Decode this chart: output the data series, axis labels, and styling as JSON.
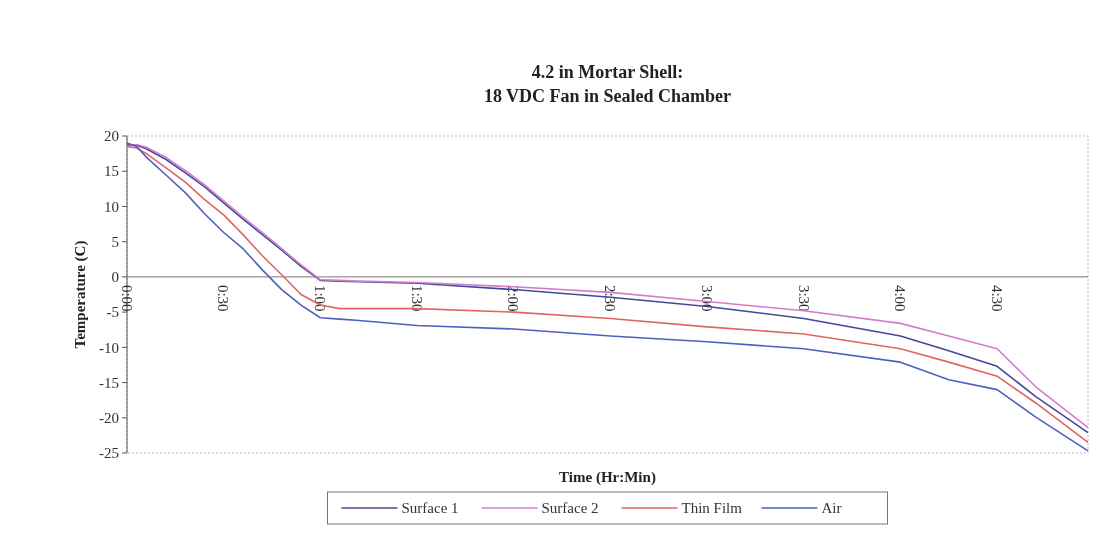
{
  "chart_data": {
    "type": "line",
    "title": "4.2 in Mortar Shell:\n18 VDC Fan in Sealed Chamber",
    "xlabel": "Time (Hr:Min)",
    "ylabel": "Temperature (C)",
    "x": [
      0,
      0.05,
      0.1,
      0.2,
      0.3,
      0.4,
      0.5,
      0.6,
      0.7,
      0.8,
      0.9,
      1.0,
      1.1,
      1.2,
      1.5,
      2.0,
      2.5,
      3.0,
      3.5,
      4.0,
      4.25,
      4.5,
      4.7,
      4.97
    ],
    "series": [
      {
        "name": "Surface 1",
        "color": "#3f4a9a",
        "values": [
          18.7,
          18.7,
          18.2,
          16.7,
          14.8,
          12.8,
          10.5,
          8.2,
          6,
          3.8,
          1.5,
          -0.5,
          -0.6,
          -0.7,
          -0.9,
          -1.8,
          -2.9,
          -4.2,
          -5.9,
          -8.4,
          -10.5,
          -12.7,
          -17,
          -22.1
        ]
      },
      {
        "name": "Surface 2",
        "color": "#d47ccc",
        "values": [
          18.5,
          18.8,
          18.4,
          17,
          15.1,
          13.1,
          10.8,
          8.5,
          6.3,
          4,
          1.7,
          -0.4,
          -0.5,
          -0.6,
          -0.8,
          -1.4,
          -2.2,
          -3.5,
          -4.8,
          -6.6,
          -8.4,
          -10.2,
          -15.6,
          -21.4
        ]
      },
      {
        "name": "Thin Film",
        "color": "#e06464",
        "values": [
          18.5,
          18.3,
          17.5,
          15.5,
          13.5,
          11,
          8.8,
          6,
          3,
          0.3,
          -2.5,
          -4,
          -4.5,
          -4.5,
          -4.5,
          -5,
          -5.9,
          -7.1,
          -8.1,
          -10.2,
          -12.1,
          -14.1,
          -17.9,
          -23.5
        ]
      },
      {
        "name": "Air",
        "color": "#4f5fc0",
        "values": [
          19,
          18.5,
          17,
          14.5,
          12,
          9,
          6.3,
          4,
          1,
          -1.8,
          -4,
          -5.8,
          -6,
          -6.2,
          -6.9,
          -7.4,
          -8.4,
          -9.2,
          -10.2,
          -12.1,
          -14.6,
          -16,
          -19.9,
          -24.7
        ]
      }
    ],
    "xlim": [
      0,
      4.97
    ],
    "xticks": [
      {
        "value": 0,
        "label": "0:00"
      },
      {
        "value": 0.5,
        "label": "0:30"
      },
      {
        "value": 1,
        "label": "1:00"
      },
      {
        "value": 1.5,
        "label": "1:30"
      },
      {
        "value": 2,
        "label": "2:00"
      },
      {
        "value": 2.5,
        "label": "2:30"
      },
      {
        "value": 3,
        "label": "3:00"
      },
      {
        "value": 3.5,
        "label": "3:30"
      },
      {
        "value": 4,
        "label": "4:00"
      },
      {
        "value": 4.5,
        "label": "4:30"
      }
    ],
    "ylim": [
      -25,
      20
    ],
    "yticks": [
      -25,
      -20,
      -15,
      -10,
      -5,
      0,
      5,
      10,
      15,
      20
    ],
    "legend": "bottom",
    "grid": false,
    "marker": "none",
    "line_style": "solid"
  }
}
